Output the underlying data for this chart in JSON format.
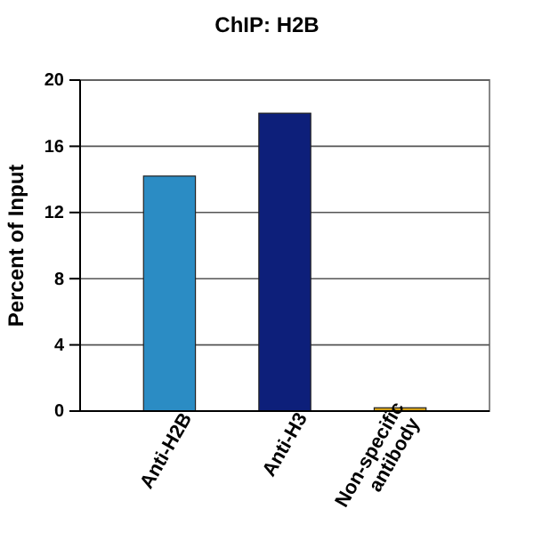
{
  "chart_data": {
    "type": "bar",
    "title": "ChIP: H2B",
    "ylabel": "Percent of Input",
    "categories": [
      "Anti-H2B",
      "Anti-H3",
      "Non-specific antibody"
    ],
    "values": [
      14.2,
      18,
      0.2
    ],
    "colors": [
      "#2b8cc4",
      "#0d1f7a",
      "#d4a017"
    ],
    "ylim": [
      0,
      20
    ],
    "yticks": [
      0,
      4,
      8,
      12,
      16,
      20
    ],
    "grid": "y"
  }
}
